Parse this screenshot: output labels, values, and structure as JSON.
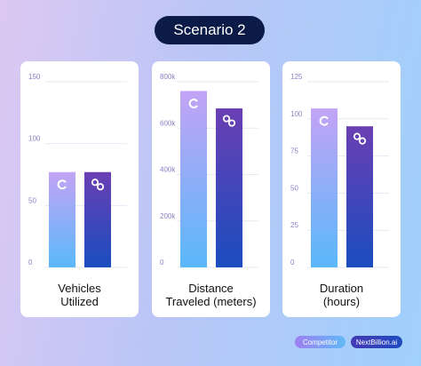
{
  "scenario_title": "Scenario 2",
  "legend": {
    "competitor": "Competitor",
    "nextbillion": "NextBillion.ai"
  },
  "colors": {
    "competitor_top": "#c3a3f5",
    "competitor_bottom": "#5ab8fa",
    "nextbillion_top": "#6a3fb3",
    "nextbillion_bottom": "#1a4dbf",
    "title_bg": "#0b1a46"
  },
  "chart_data": [
    {
      "type": "bar",
      "label_lines": [
        "Vehicles",
        "Utilized"
      ],
      "categories": [
        "Competitor",
        "NextBillion.ai"
      ],
      "values": [
        77,
        77
      ],
      "ylim": [
        0,
        150
      ],
      "yticks": [
        0,
        50,
        100,
        150
      ],
      "ytick_labels": [
        "0",
        "50",
        "100",
        "150"
      ],
      "bar_icons": [
        "competitor-logo-icon",
        "nextbillion-logo-icon"
      ],
      "grid": true
    },
    {
      "type": "bar",
      "label_lines": [
        "Distance",
        "Traveled (meters)"
      ],
      "categories": [
        "Competitor",
        "NextBillion.ai"
      ],
      "values": [
        760000,
        685000
      ],
      "ylim": [
        0,
        800000
      ],
      "yticks": [
        0,
        200000,
        400000,
        600000,
        800000
      ],
      "ytick_labels": [
        "0",
        "200k",
        "400k",
        "600k",
        "800k"
      ],
      "bar_icons": [
        "competitor-logo-icon",
        "nextbillion-logo-icon"
      ],
      "grid": true
    },
    {
      "type": "bar",
      "label_lines": [
        "Duration",
        "(hours)"
      ],
      "categories": [
        "Competitor",
        "NextBillion.ai"
      ],
      "values": [
        107,
        95
      ],
      "ylim": [
        0,
        125
      ],
      "yticks": [
        0,
        25,
        50,
        75,
        100,
        125
      ],
      "ytick_labels": [
        "0",
        "25",
        "50",
        "75",
        "100",
        "125"
      ],
      "bar_icons": [
        "competitor-logo-icon",
        "nextbillion-logo-icon"
      ],
      "grid": true
    }
  ]
}
